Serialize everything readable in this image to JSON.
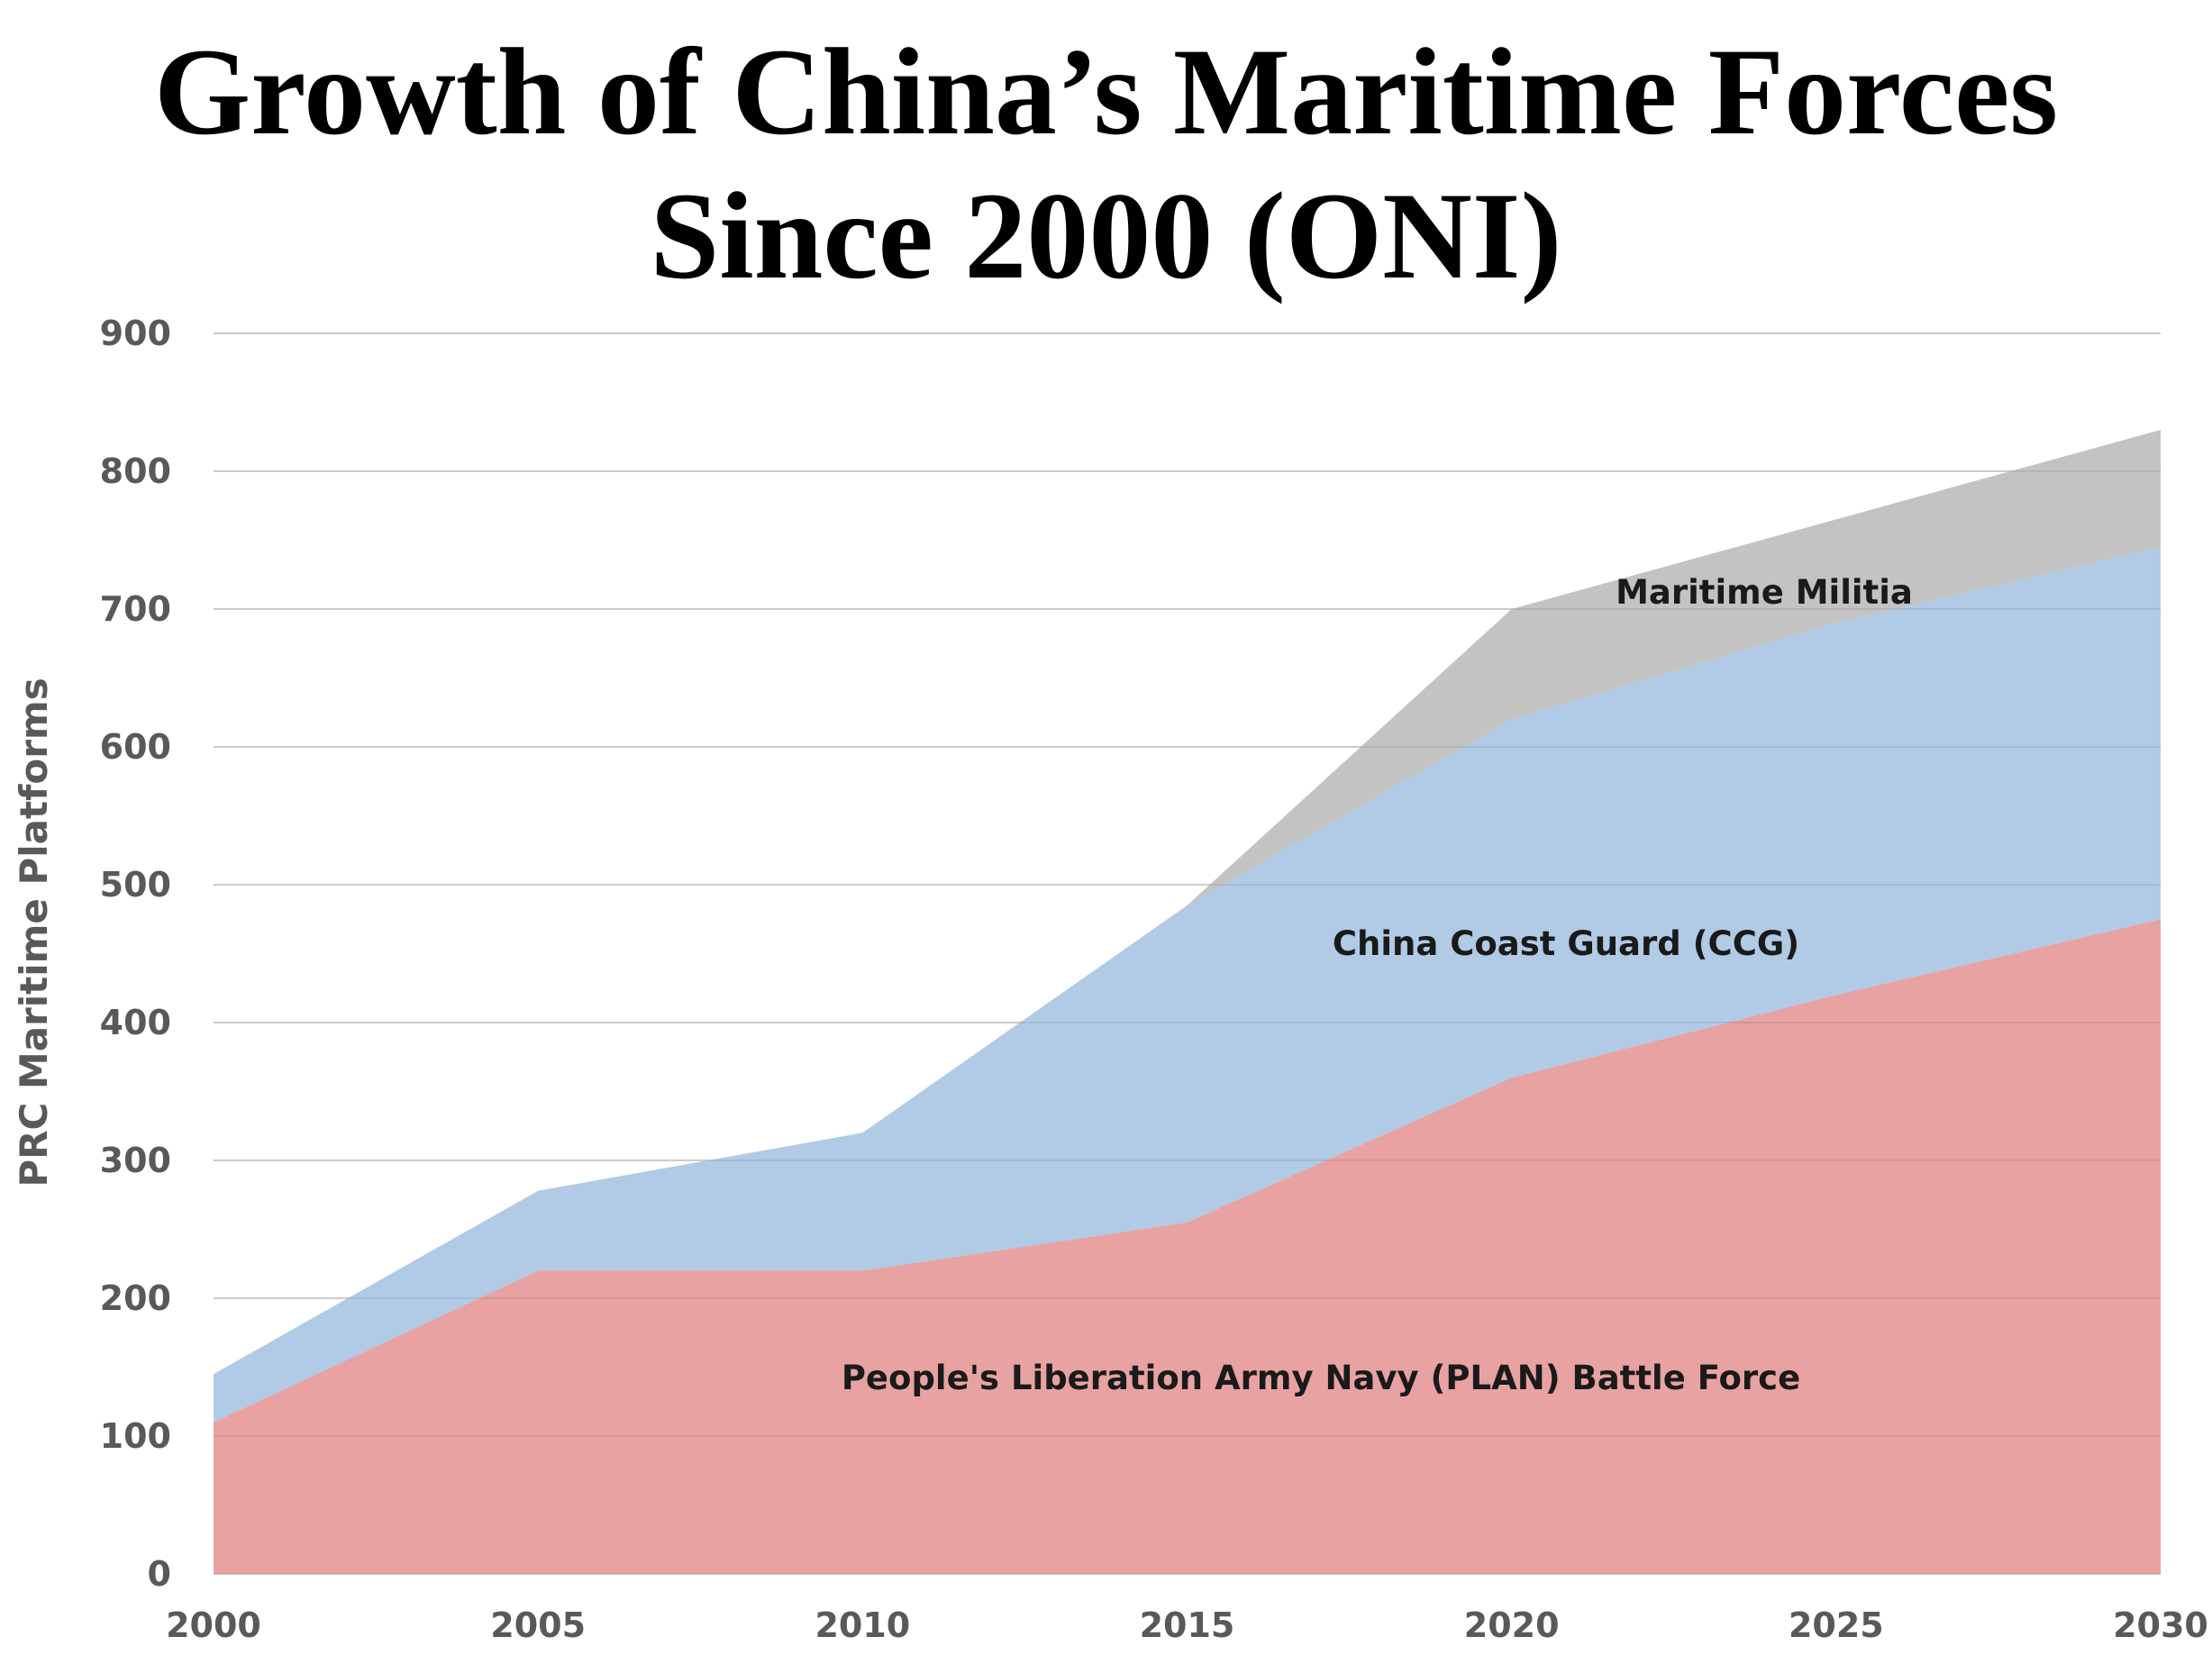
{
  "title_line1": "Growth of China’s Maritime Forces",
  "title_line2": "Since 2000 (ONI)",
  "chart_data": {
    "type": "area",
    "stacked": true,
    "x": [
      2000,
      2005,
      2010,
      2015,
      2020,
      2025,
      2030
    ],
    "x_ticks": [
      "2000",
      "2005",
      "2010",
      "2015",
      "2020",
      "2025",
      "2030"
    ],
    "y_ticks": [
      "0",
      "100",
      "200",
      "300",
      "400",
      "500",
      "600",
      "700",
      "800",
      "900"
    ],
    "ylabel": "PRC Maritime Platforms",
    "xlabel": "",
    "ylim": [
      0,
      900
    ],
    "grid": true,
    "legend": "none (labels inside areas)",
    "series": [
      {
        "name": "People's Liberation Army Navy (PLAN) Battle Force",
        "color": "#e59898",
        "top": [
          110,
          220,
          220,
          255,
          360,
          420,
          475
        ]
      },
      {
        "name": "China Coast Guard (CCG)",
        "color": "#a9c4e2",
        "top": [
          145,
          278,
          320,
          485,
          620,
          690,
          745
        ]
      },
      {
        "name": "Maritime Militia",
        "color": "#bcbcbc",
        "top": [
          145,
          278,
          320,
          485,
          700,
          765,
          830
        ]
      }
    ]
  }
}
